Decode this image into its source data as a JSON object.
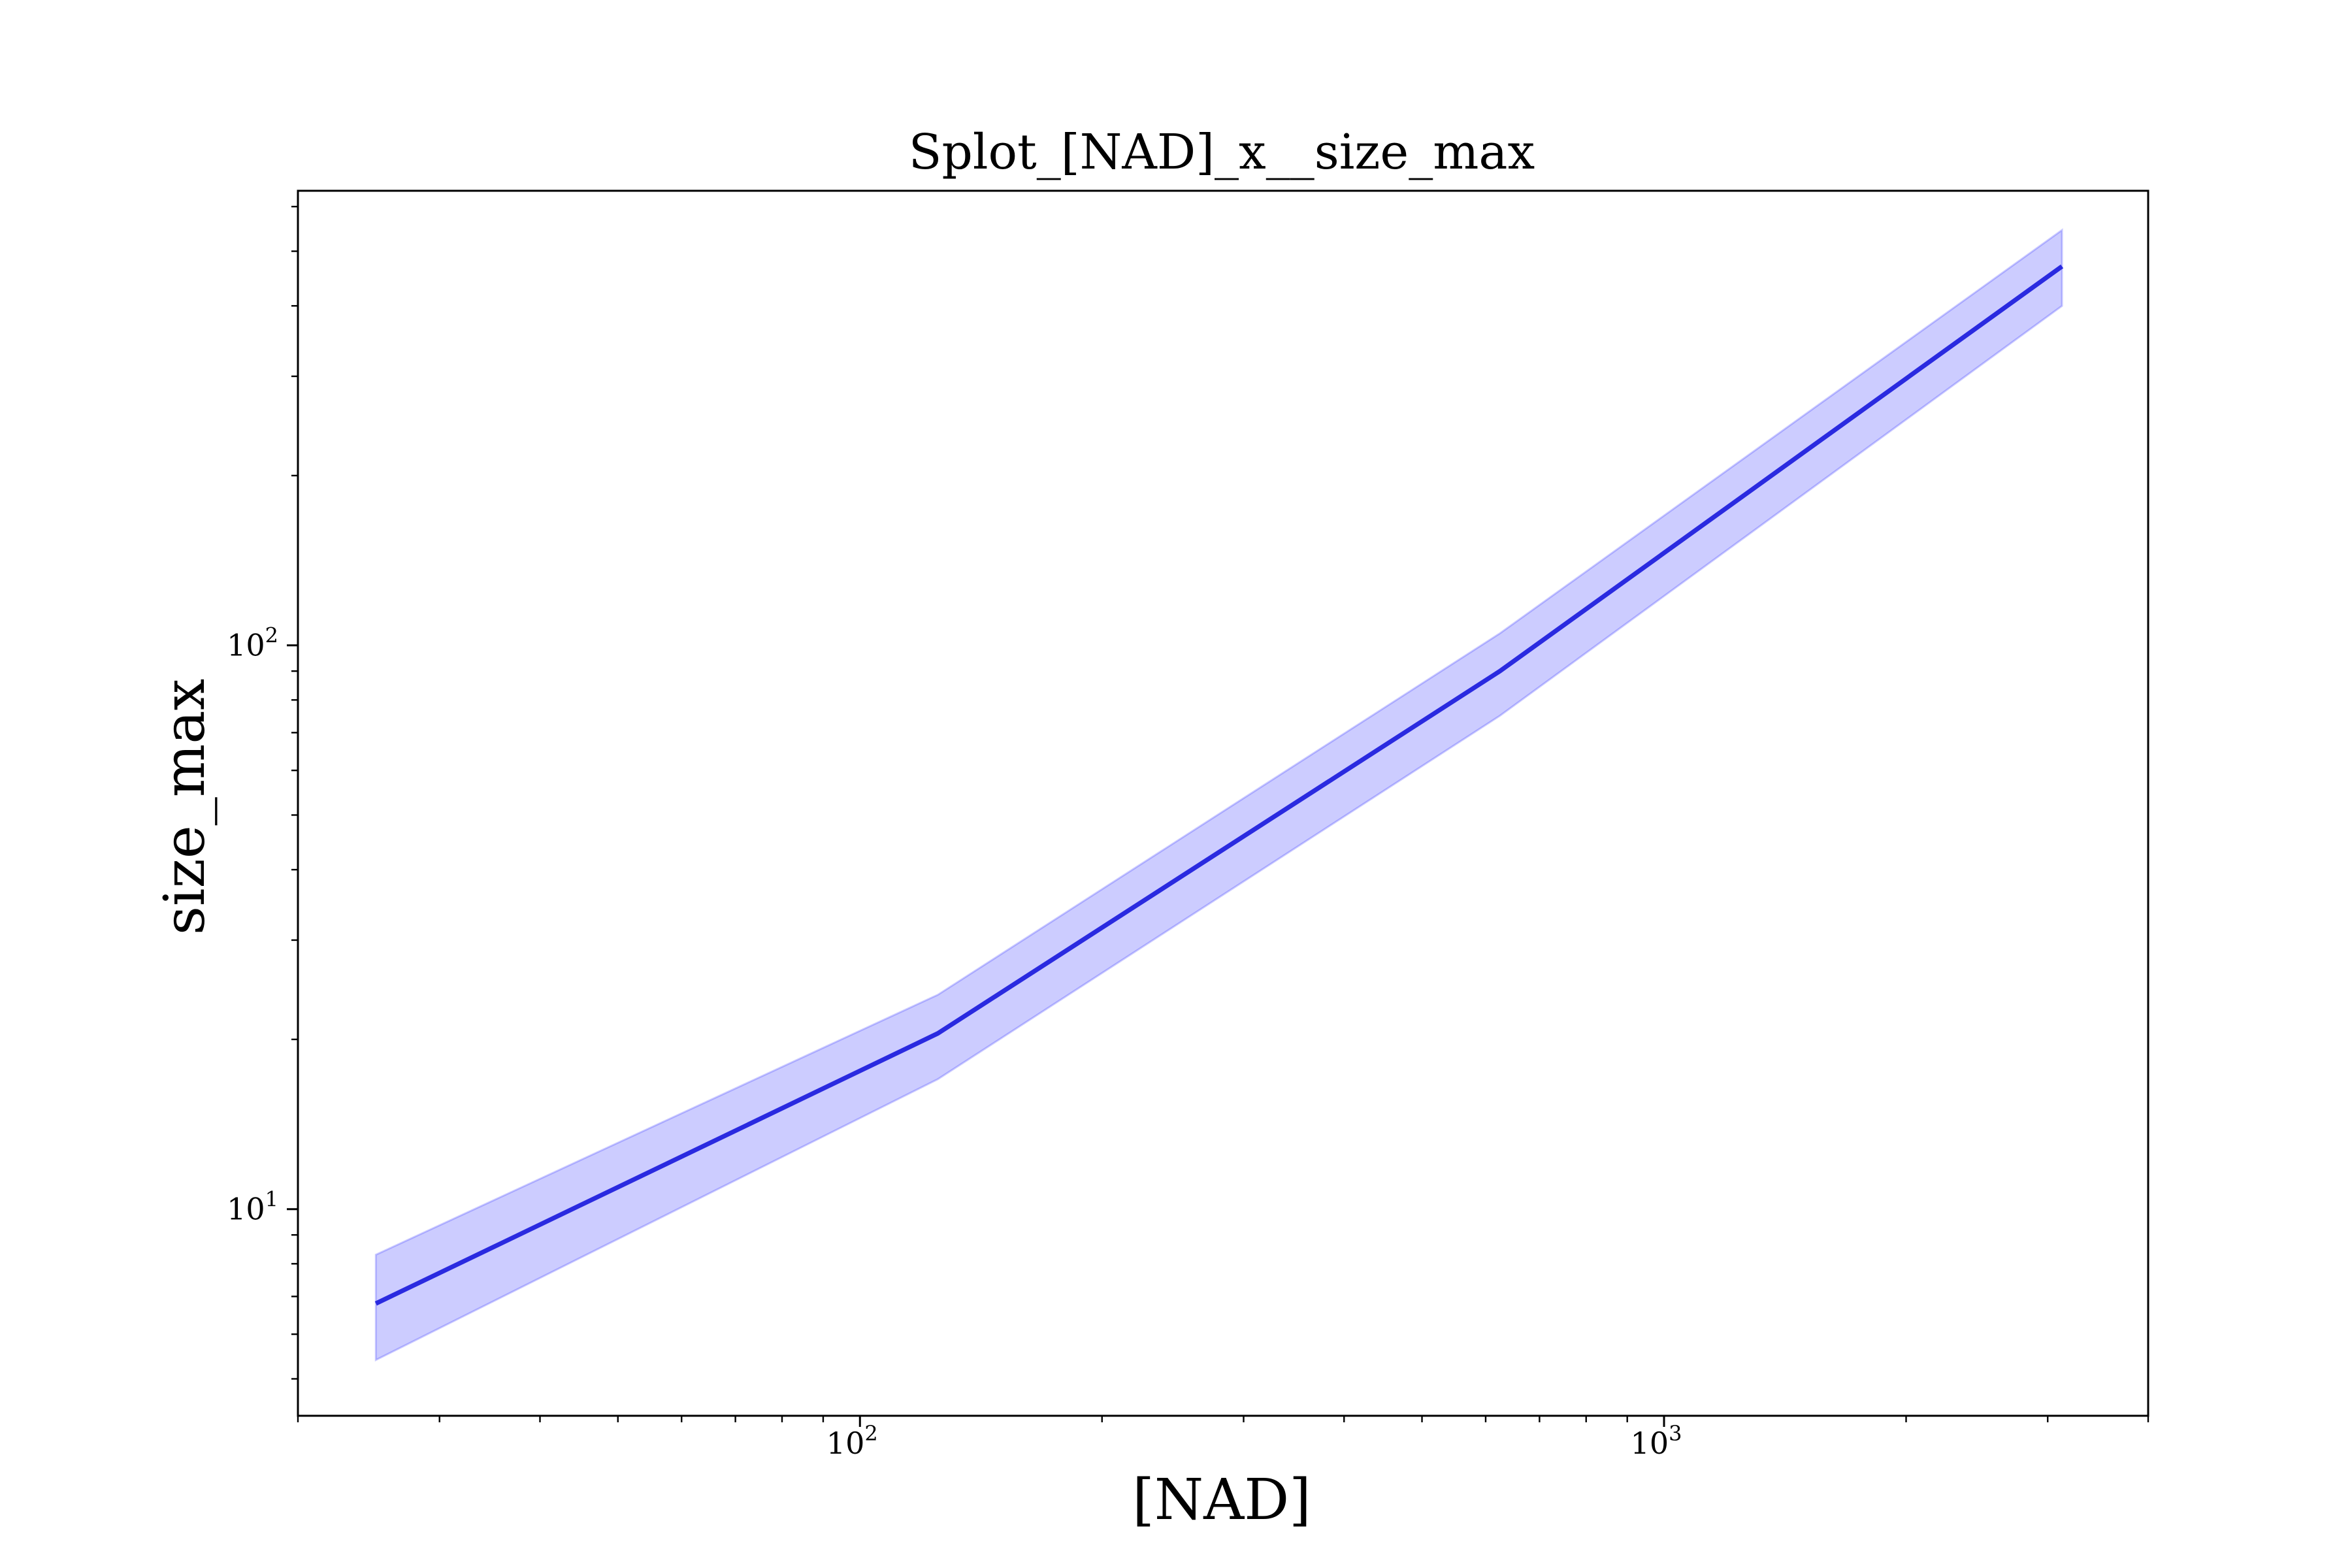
{
  "chart_data": {
    "type": "line",
    "title": "Splot_[NAD]_x__size_max",
    "xlabel": "[NAD]",
    "ylabel": "size_max",
    "xscale": "log",
    "yscale": "log",
    "xlim": [
      20,
      4000
    ],
    "ylim": [
      4.3,
      640
    ],
    "grid": false,
    "legend": "none",
    "x_ticks": [
      {
        "value": 100,
        "label_base": "10",
        "label_exp": "2"
      },
      {
        "value": 1000,
        "label_base": "10",
        "label_exp": "3"
      }
    ],
    "y_ticks": [
      {
        "value": 10,
        "label_base": "10",
        "label_exp": "1"
      },
      {
        "value": 100,
        "label_base": "10",
        "label_exp": "2"
      }
    ],
    "series": [
      {
        "x": [
          25,
          125,
          625,
          3125
        ],
        "y": [
          6.8,
          20.5,
          90,
          470
        ],
        "y_lower": [
          5.4,
          17,
          75,
          400
        ],
        "y_upper": [
          8.3,
          24,
          105,
          545
        ],
        "color": "#2a2ae0",
        "band_color": "#0000ff"
      }
    ]
  }
}
